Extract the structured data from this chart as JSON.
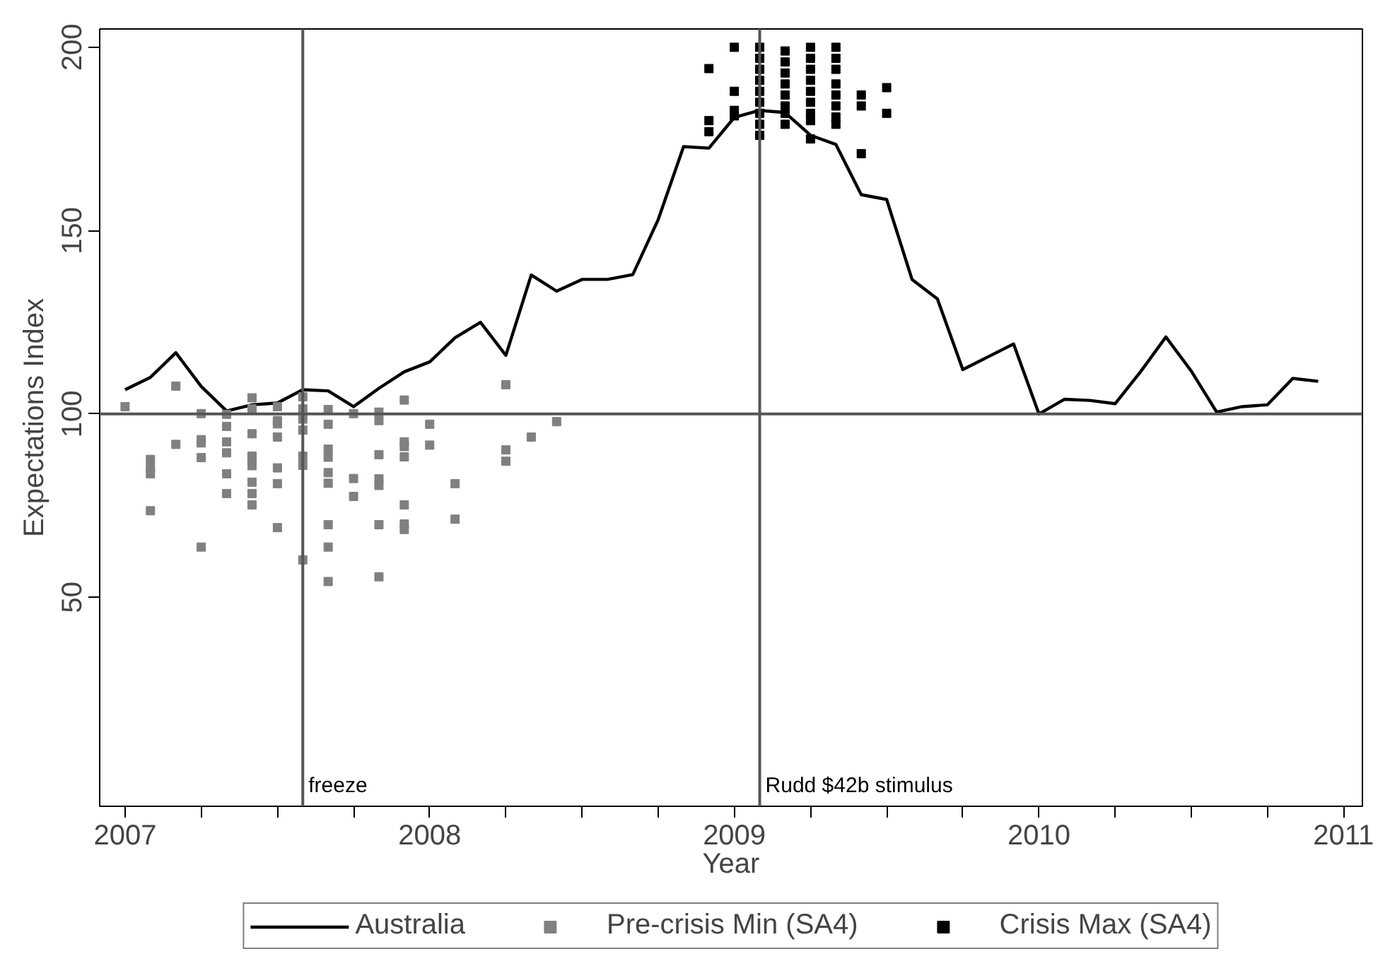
{
  "chart_data": {
    "type": "line",
    "xlabel": "Year",
    "ylabel": "Expectations Index",
    "x": [
      "2007-01",
      "2007-02",
      "2007-03",
      "2007-04",
      "2007-05",
      "2007-06",
      "2007-07",
      "2007-08",
      "2007-09",
      "2007-10",
      "2007-11",
      "2007-12",
      "2008-01",
      "2008-02",
      "2008-03",
      "2008-04",
      "2008-05",
      "2008-06",
      "2008-07",
      "2008-08",
      "2008-09",
      "2008-10",
      "2008-11",
      "2008-12",
      "2009-01",
      "2009-02",
      "2009-03",
      "2009-04",
      "2009-05",
      "2009-06",
      "2009-07",
      "2009-08",
      "2009-09",
      "2009-10",
      "2009-11",
      "2009-12",
      "2010-01",
      "2010-02",
      "2010-03",
      "2010-04",
      "2010-05",
      "2010-06",
      "2010-07",
      "2010-08",
      "2010-09",
      "2010-10",
      "2010-11",
      "2010-12"
    ],
    "series": [
      {
        "name": "Australia",
        "color": "#000000",
        "marker": "none",
        "line_style": "solid",
        "values": [
          106.6,
          110,
          116.7,
          107.5,
          100.8,
          102.5,
          103,
          106.6,
          106.3,
          102,
          107,
          111.5,
          114.2,
          120.8,
          125,
          116,
          137.9,
          133.5,
          136.7,
          136.7,
          138,
          153,
          172.9,
          172.5,
          180.9,
          182.8,
          182.2,
          176,
          173.5,
          159.8,
          158.5,
          136.7,
          131.4,
          112.1,
          115.6,
          119.1,
          100,
          104,
          103.7,
          102.8,
          111.5,
          121,
          111.7,
          100.5,
          102,
          102.5,
          109.7,
          108.9
        ]
      },
      {
        "name": "Pre-crisis Min (SA4)",
        "type": "scatter",
        "color": "#808080",
        "marker": "square",
        "x": [
          "2007-01",
          "2007-02",
          "2007-02",
          "2007-02",
          "2007-02",
          "2007-03",
          "2007-03",
          "2007-04",
          "2007-04",
          "2007-04",
          "2007-04",
          "2007-04",
          "2007-05",
          "2007-05",
          "2007-05",
          "2007-05",
          "2007-05",
          "2007-05",
          "2007-06",
          "2007-06",
          "2007-06",
          "2007-06",
          "2007-06",
          "2007-06",
          "2007-06",
          "2007-06",
          "2007-06",
          "2007-07",
          "2007-07",
          "2007-07",
          "2007-07",
          "2007-07",
          "2007-07",
          "2007-07",
          "2007-08",
          "2007-08",
          "2007-08",
          "2007-08",
          "2007-08",
          "2007-08",
          "2007-08",
          "2007-09",
          "2007-09",
          "2007-09",
          "2007-09",
          "2007-09",
          "2007-09",
          "2007-09",
          "2007-09",
          "2007-09",
          "2007-10",
          "2007-10",
          "2007-10",
          "2007-11",
          "2007-11",
          "2007-11",
          "2007-11",
          "2007-11",
          "2007-11",
          "2007-11",
          "2007-12",
          "2007-12",
          "2007-12",
          "2007-12",
          "2007-12",
          "2007-12",
          "2007-12",
          "2008-01",
          "2008-01",
          "2008-02",
          "2008-02",
          "2008-04",
          "2008-04",
          "2008-04",
          "2008-05",
          "2008-06"
        ],
        "values": [
          102,
          87.6,
          85.3,
          83.7,
          73.6,
          107.6,
          91.7,
          100.1,
          93,
          92.1,
          88.1,
          63.7,
          99.9,
          96.6,
          92.4,
          89.4,
          83.7,
          78.3,
          104.4,
          101.4,
          94.6,
          88.5,
          87.5,
          85.9,
          81.4,
          78.3,
          75.2,
          102,
          98.2,
          97.3,
          93.7,
          85.3,
          81,
          69,
          104.7,
          101.4,
          98.6,
          95.6,
          88.5,
          86,
          60.2,
          101.2,
          97.2,
          90.4,
          88.2,
          84,
          81.1,
          69.8,
          63.7,
          54.3,
          100.1,
          82.4,
          77.5,
          100.5,
          98.2,
          88.9,
          82.3,
          80.5,
          69.8,
          55.6,
          103.8,
          92.4,
          91.1,
          88.3,
          75.2,
          70,
          68.5,
          97.2,
          91.5,
          81,
          71.3,
          108,
          90.2,
          87.1,
          93.7,
          97.9
        ]
      },
      {
        "name": "Crisis Max (SA4)",
        "type": "scatter",
        "color": "#000000",
        "marker": "square",
        "x": [
          "2008-12",
          "2008-12",
          "2008-12",
          "2009-01",
          "2009-01",
          "2009-01",
          "2009-01",
          "2009-02",
          "2009-02",
          "2009-02",
          "2009-02",
          "2009-02",
          "2009-02",
          "2009-02",
          "2009-02",
          "2009-02",
          "2009-03",
          "2009-03",
          "2009-03",
          "2009-03",
          "2009-03",
          "2009-03",
          "2009-03",
          "2009-03",
          "2009-04",
          "2009-04",
          "2009-04",
          "2009-04",
          "2009-04",
          "2009-04",
          "2009-04",
          "2009-04",
          "2009-04",
          "2009-05",
          "2009-05",
          "2009-05",
          "2009-05",
          "2009-05",
          "2009-05",
          "2009-05",
          "2009-05",
          "2009-06",
          "2009-06",
          "2009-06",
          "2009-07",
          "2009-07"
        ],
        "values": [
          194.2,
          180,
          177,
          200,
          188,
          182.8,
          181.3,
          200,
          197,
          194,
          191,
          188,
          185,
          182,
          179,
          176,
          199,
          196,
          193,
          190,
          187,
          184,
          182,
          179,
          200,
          197,
          194,
          191,
          188,
          185,
          182,
          180,
          175,
          200,
          197,
          194,
          190,
          187,
          184,
          181,
          179,
          187,
          184,
          171,
          189,
          182
        ]
      }
    ],
    "xlim": [
      "2006-12",
      "2011-01-24"
    ],
    "xticks": [
      {
        "value": "2007",
        "label": "2007"
      },
      {
        "value": "2007-04",
        "label": null
      },
      {
        "value": "2007-07",
        "label": null
      },
      {
        "value": "2007-10",
        "label": null
      },
      {
        "value": "2008",
        "label": "2008"
      },
      {
        "value": "2008-04",
        "label": null
      },
      {
        "value": "2008-07",
        "label": null
      },
      {
        "value": "2008-10",
        "label": null
      },
      {
        "value": "2009",
        "label": "2009"
      },
      {
        "value": "2009-04",
        "label": null
      },
      {
        "value": "2009-07",
        "label": null
      },
      {
        "value": "2009-10",
        "label": null
      },
      {
        "value": "2010",
        "label": "2010"
      },
      {
        "value": "2010-04",
        "label": null
      },
      {
        "value": "2010-07",
        "label": null
      },
      {
        "value": "2010-10",
        "label": null
      },
      {
        "value": "2011",
        "label": "2011"
      }
    ],
    "ylim": [
      -7,
      205
    ],
    "yticks": [
      50,
      100,
      150,
      200
    ],
    "ref_lines": [
      {
        "axis": "x",
        "value": "2007-08",
        "label": "freeze",
        "color": "#555555"
      },
      {
        "axis": "x",
        "value": "2009-02",
        "label": "Rudd $42b stimulus",
        "color": "#555555"
      },
      {
        "axis": "y",
        "value": 100,
        "label": null,
        "color": "#555555"
      }
    ],
    "grid": false,
    "legend": "bottom"
  }
}
